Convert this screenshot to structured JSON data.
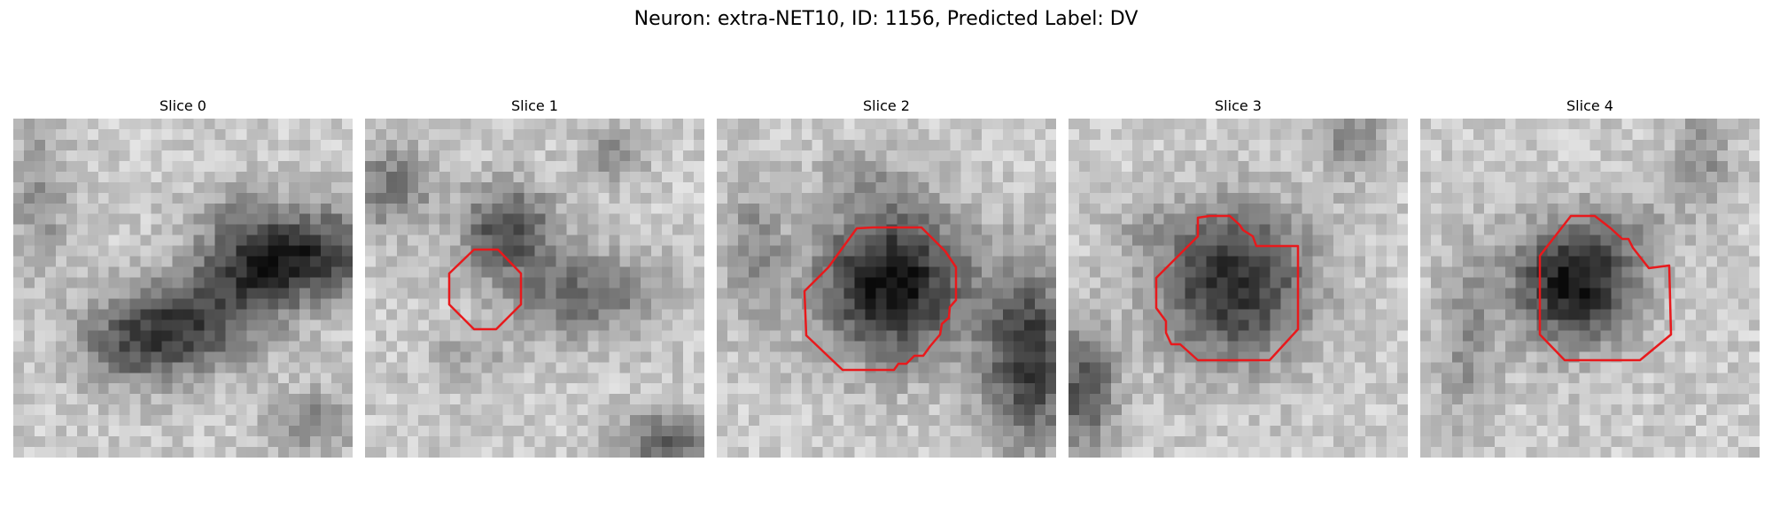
{
  "figure": {
    "title": "Neuron: extra-NET10, ID: 1156, Predicted Label: DV",
    "contour_color": "#e8191c"
  },
  "panels": [
    {
      "title": "Slice 0",
      "has_contour": false
    },
    {
      "title": "Slice 1",
      "has_contour": true
    },
    {
      "title": "Slice 2",
      "has_contour": true
    },
    {
      "title": "Slice 3",
      "has_contour": true
    },
    {
      "title": "Slice 4",
      "has_contour": true
    }
  ]
}
